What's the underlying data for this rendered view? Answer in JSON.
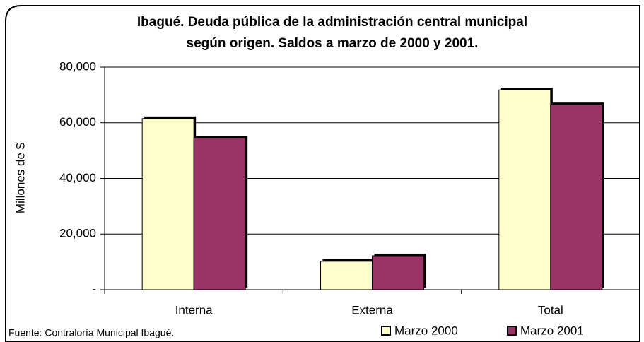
{
  "chart_data": {
    "type": "bar",
    "title": [
      "Ibagué. Deuda pública de la administración central municipal",
      "según origen. Saldos a marzo de 2000 y 2001."
    ],
    "y_label": "Millones de $",
    "categories": [
      "Interna",
      "Externa",
      "Total"
    ],
    "series": [
      {
        "name": "Marzo 2000",
        "color": "#ffffcc",
        "values": [
          61500,
          10200,
          71800
        ]
      },
      {
        "name": "Marzo 2001",
        "color": "#993366",
        "values": [
          54600,
          12200,
          66500
        ]
      }
    ],
    "ylim": [
      0,
      80000
    ],
    "yticks": [
      {
        "value": 0,
        "label": "-"
      },
      {
        "value": 20000,
        "label": "20,000"
      },
      {
        "value": 40000,
        "label": "40,000"
      },
      {
        "value": 60000,
        "label": "60,000"
      },
      {
        "value": 80000,
        "label": "80,000"
      }
    ],
    "grid": true,
    "source": "Fuente: Contraloría Municipal Ibagué."
  }
}
